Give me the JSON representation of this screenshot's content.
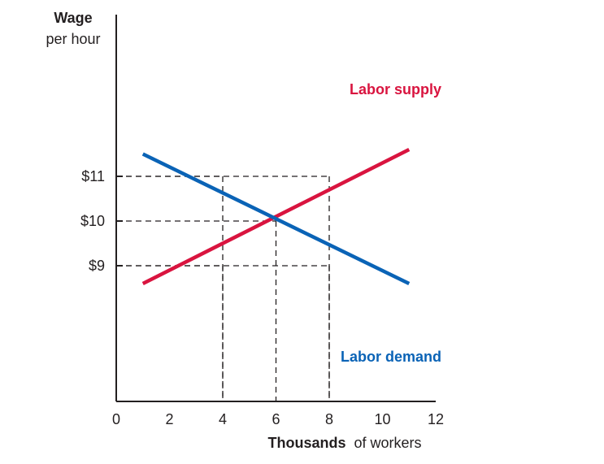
{
  "chart_data": {
    "type": "line",
    "ylabel_bold": "Wage",
    "ylabel_rest": "per hour",
    "xlabel_bold": "Thousands",
    "xlabel_rest": "of workers",
    "xlim": [
      0,
      12
    ],
    "x_ticks": [
      {
        "value": 0,
        "label": "0"
      },
      {
        "value": 2,
        "label": "2"
      },
      {
        "value": 4,
        "label": "4"
      },
      {
        "value": 6,
        "label": "6"
      },
      {
        "value": 8,
        "label": "8"
      },
      {
        "value": 10,
        "label": "10"
      },
      {
        "value": 12,
        "label": "12"
      }
    ],
    "y_ticks": [
      {
        "value": 9,
        "label": "$9"
      },
      {
        "value": 10,
        "label": "$10"
      },
      {
        "value": 11,
        "label": "$11"
      }
    ],
    "series": [
      {
        "name": "Labor supply",
        "color": "#d9143f",
        "x": [
          1,
          11
        ],
        "y": [
          8.6,
          11.6
        ]
      },
      {
        "name": "Labor demand",
        "color": "#0a63b6",
        "x": [
          1,
          11
        ],
        "y": [
          11.5,
          8.6
        ]
      }
    ],
    "reference_lines": [
      {
        "x": 4,
        "y": 11
      },
      {
        "x": 8,
        "y": 11
      },
      {
        "x": 6,
        "y": 10
      },
      {
        "x": 4,
        "y": 9
      },
      {
        "x": 8,
        "y": 9
      }
    ],
    "grid": false,
    "axis_color": "#231f20"
  }
}
